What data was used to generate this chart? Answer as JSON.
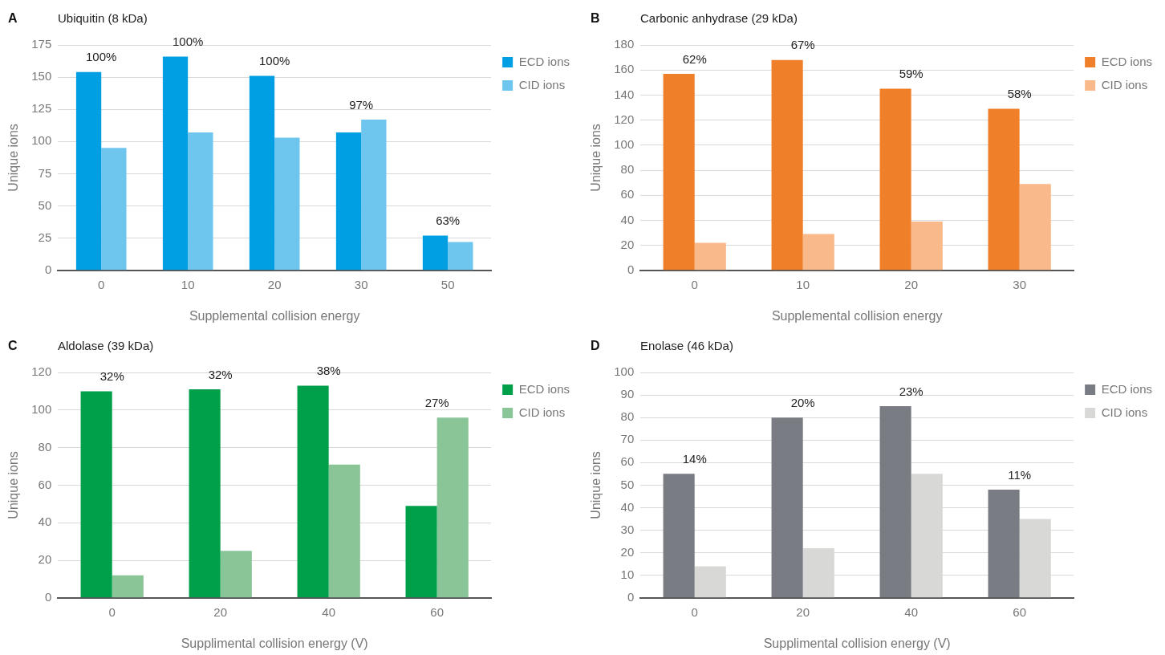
{
  "chart_data": [
    {
      "type": "bar",
      "title": "Ubiquitin (8 kDa)",
      "xlabel": "Supplemental collision energy",
      "ylabel": "Unique ions",
      "categories": [
        "0",
        "10",
        "20",
        "30",
        "50"
      ],
      "series": [
        {
          "name": "ECD ions",
          "color": "#009fe3",
          "values": [
            154,
            166,
            151,
            107,
            27
          ]
        },
        {
          "name": "CID ions",
          "color": "#6ec6ee",
          "values": [
            95,
            107,
            103,
            117,
            22
          ]
        }
      ],
      "ylim": [
        0,
        175
      ],
      "yticks": [
        0,
        25,
        50,
        75,
        100,
        125,
        150,
        175
      ],
      "grid": "y",
      "legend": "top right",
      "annotations": [
        "A",
        {
          "text": "100%",
          "x": "0",
          "y": 154
        },
        {
          "text": "100%",
          "x": "10",
          "y": 166
        },
        {
          "text": "100%",
          "x": "20",
          "y": 151
        },
        {
          "text": "97%",
          "x": "30",
          "y": 117
        },
        {
          "text": "63%",
          "x": "50",
          "y": 27
        }
      ]
    },
    {
      "type": "bar",
      "title": "Carbonic anhydrase (29 kDa)",
      "xlabel": "Supplemental collision energy",
      "ylabel": "Unique ions",
      "categories": [
        "0",
        "10",
        "20",
        "30"
      ],
      "series": [
        {
          "name": "ECD ions",
          "color": "#f07f2a",
          "values": [
            157,
            168,
            145,
            129
          ]
        },
        {
          "name": "CID ions",
          "color": "#f9b98a",
          "values": [
            22,
            29,
            39,
            69
          ]
        }
      ],
      "ylim": [
        0,
        180
      ],
      "yticks": [
        0,
        20,
        40,
        60,
        80,
        100,
        120,
        140,
        160,
        180
      ],
      "grid": "y",
      "legend": "top right",
      "annotations": [
        "B",
        {
          "text": "62%",
          "x": "0",
          "y": 157
        },
        {
          "text": "67%",
          "x": "10",
          "y": 168
        },
        {
          "text": "59%",
          "x": "20",
          "y": 145
        },
        {
          "text": "58%",
          "x": "30",
          "y": 129
        }
      ]
    },
    {
      "type": "bar",
      "title": "Aldolase (39 kDa)",
      "xlabel": "Supplimental collision energy (V)",
      "ylabel": "Unique ions",
      "categories": [
        "0",
        "20",
        "40",
        "60"
      ],
      "series": [
        {
          "name": "ECD ions",
          "color": "#00a04a",
          "values": [
            110,
            111,
            113,
            49
          ]
        },
        {
          "name": "CID ions",
          "color": "#89c597",
          "values": [
            12,
            25,
            71,
            96
          ]
        }
      ],
      "ylim": [
        0,
        120
      ],
      "yticks": [
        0,
        20,
        40,
        60,
        80,
        100,
        120
      ],
      "grid": "y",
      "legend": "top right",
      "annotations": [
        "C",
        {
          "text": "32%",
          "x": "0",
          "y": 110
        },
        {
          "text": "32%",
          "x": "20",
          "y": 111
        },
        {
          "text": "38%",
          "x": "40",
          "y": 113
        },
        {
          "text": "27%",
          "x": "60",
          "y": 96
        }
      ]
    },
    {
      "type": "bar",
      "title": "Enolase (46 kDa)",
      "xlabel": "Supplimental collision energy (V)",
      "ylabel": "Unique ions",
      "categories": [
        "0",
        "20",
        "40",
        "60"
      ],
      "series": [
        {
          "name": "ECD ions",
          "color": "#797d83",
          "values": [
            55,
            80,
            85,
            48
          ]
        },
        {
          "name": "CID ions",
          "color": "#d8d8d6",
          "values": [
            14,
            22,
            55,
            35
          ]
        }
      ],
      "ylim": [
        0,
        100
      ],
      "yticks": [
        0,
        10,
        20,
        30,
        40,
        50,
        60,
        70,
        80,
        90,
        100
      ],
      "grid": "y",
      "legend": "top right",
      "annotations": [
        "D",
        {
          "text": "14%",
          "x": "0",
          "y": 55
        },
        {
          "text": "20%",
          "x": "20",
          "y": 80
        },
        {
          "text": "23%",
          "x": "40",
          "y": 85
        },
        {
          "text": "11%",
          "x": "60",
          "y": 48
        }
      ]
    }
  ]
}
